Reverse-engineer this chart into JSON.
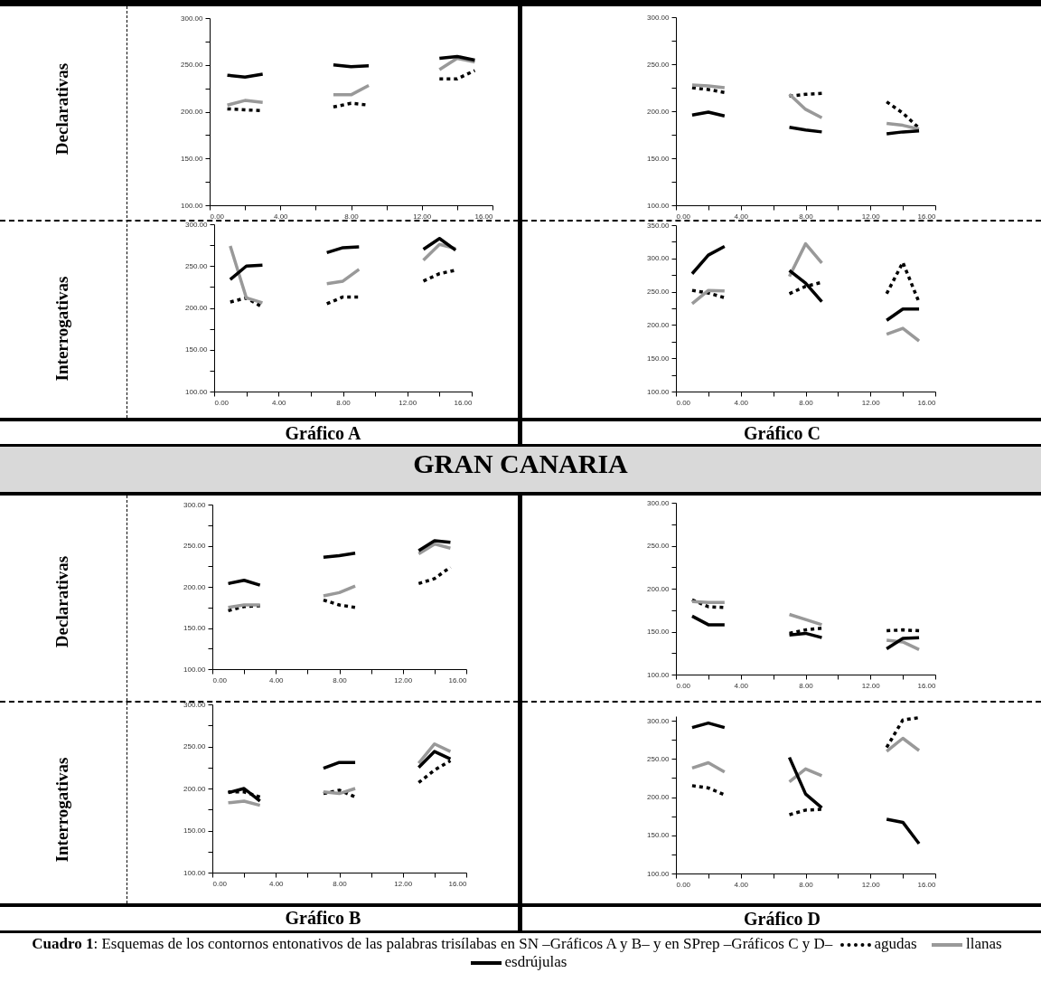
{
  "chart_data": [
    {
      "type": "line",
      "ylabel": "Declarativas",
      "x": [
        1,
        2,
        3,
        5,
        7,
        8,
        9,
        11,
        13,
        14,
        15
      ],
      "xlim": [
        0,
        16
      ],
      "ylim": [
        100,
        300
      ],
      "xticks": [
        {
          "value": 0,
          "label": "0.00"
        },
        {
          "value": 2,
          "label": null
        },
        {
          "value": 4,
          "label": "4.00"
        },
        {
          "value": 6,
          "label": null
        },
        {
          "value": 8,
          "label": "8.00"
        },
        {
          "value": 10,
          "label": null
        },
        {
          "value": 12,
          "label": "12.00"
        },
        {
          "value": 14,
          "label": null
        },
        {
          "value": 16,
          "label": "16.00"
        }
      ],
      "yticks": [
        {
          "value": 100,
          "label": "100.00"
        },
        {
          "value": 125,
          "label": null
        },
        {
          "value": 150,
          "label": "150.00"
        },
        {
          "value": 175,
          "label": null
        },
        {
          "value": 200,
          "label": "200.00"
        },
        {
          "value": 225,
          "label": null
        },
        {
          "value": 250,
          "label": "250.00"
        },
        {
          "value": 275,
          "label": null
        },
        {
          "value": 300,
          "label": "300.00"
        }
      ],
      "series": [
        {
          "color": "#000000",
          "line_style": "dotted",
          "values": [
            203,
            202,
            201,
            null,
            205,
            209,
            207,
            null,
            235,
            235,
            244
          ]
        },
        {
          "color": "#999999",
          "line_style": "solid",
          "values": [
            207,
            212,
            210,
            null,
            218,
            218,
            228,
            null,
            245,
            257,
            253
          ]
        },
        {
          "color": "#000000",
          "line_style": "solid",
          "values": [
            239,
            237,
            240,
            null,
            250,
            248,
            249,
            null,
            257,
            259,
            255
          ]
        }
      ]
    },
    {
      "type": "line",
      "x": [
        1,
        2,
        3,
        5,
        7,
        8,
        9,
        11,
        13,
        14,
        15
      ],
      "xlim": [
        0,
        16
      ],
      "ylim": [
        100,
        300
      ],
      "xticks": [
        {
          "value": 0,
          "label": "0.00"
        },
        {
          "value": 2,
          "label": null
        },
        {
          "value": 4,
          "label": "4.00"
        },
        {
          "value": 6,
          "label": null
        },
        {
          "value": 8,
          "label": "8.00"
        },
        {
          "value": 10,
          "label": null
        },
        {
          "value": 12,
          "label": "12.00"
        },
        {
          "value": 14,
          "label": null
        },
        {
          "value": 16,
          "label": "16.00"
        }
      ],
      "yticks": [
        {
          "value": 100,
          "label": "100.00"
        },
        {
          "value": 125,
          "label": null
        },
        {
          "value": 150,
          "label": "150.00"
        },
        {
          "value": 175,
          "label": null
        },
        {
          "value": 200,
          "label": "200.00"
        },
        {
          "value": 225,
          "label": null
        },
        {
          "value": 250,
          "label": "250.00"
        },
        {
          "value": 275,
          "label": null
        },
        {
          "value": 300,
          "label": "300.00"
        }
      ],
      "series": [
        {
          "color": "#000000",
          "line_style": "dotted",
          "values": [
            225,
            223,
            220,
            null,
            216,
            218,
            219,
            null,
            210,
            198,
            182
          ]
        },
        {
          "color": "#999999",
          "line_style": "solid",
          "values": [
            228,
            227,
            225,
            null,
            218,
            202,
            193,
            null,
            187,
            185,
            181
          ]
        },
        {
          "color": "#000000",
          "line_style": "solid",
          "values": [
            196,
            199,
            195,
            null,
            183,
            180,
            178,
            null,
            176,
            178,
            179
          ]
        }
      ]
    },
    {
      "type": "line",
      "ylabel": "Interrogativas",
      "xlabel": "Gráfico A",
      "x": [
        1,
        2,
        3,
        5,
        7,
        8,
        9,
        11,
        13,
        14,
        15
      ],
      "xlim": [
        0,
        16
      ],
      "ylim": [
        100,
        300
      ],
      "xticks": [
        {
          "value": 0,
          "label": "0.00"
        },
        {
          "value": 2,
          "label": null
        },
        {
          "value": 4,
          "label": "4.00"
        },
        {
          "value": 6,
          "label": null
        },
        {
          "value": 8,
          "label": "8.00"
        },
        {
          "value": 10,
          "label": null
        },
        {
          "value": 12,
          "label": "12.00"
        },
        {
          "value": 14,
          "label": null
        },
        {
          "value": 16,
          "label": "16.00"
        }
      ],
      "yticks": [
        {
          "value": 100,
          "label": "100.00"
        },
        {
          "value": 125,
          "label": null
        },
        {
          "value": 150,
          "label": "150.00"
        },
        {
          "value": 175,
          "label": null
        },
        {
          "value": 200,
          "label": "200.00"
        },
        {
          "value": 225,
          "label": null
        },
        {
          "value": 250,
          "label": "250.00"
        },
        {
          "value": 275,
          "label": null
        },
        {
          "value": 300,
          "label": "300.00"
        }
      ],
      "series": [
        {
          "color": "#000000",
          "line_style": "dotted",
          "values": [
            207,
            212,
            201,
            null,
            205,
            213,
            213,
            null,
            232,
            241,
            245
          ]
        },
        {
          "color": "#999999",
          "line_style": "solid",
          "values": [
            274,
            212,
            206,
            null,
            229,
            232,
            246,
            null,
            257,
            276,
            271
          ]
        },
        {
          "color": "#000000",
          "line_style": "solid",
          "values": [
            234,
            250,
            251,
            null,
            266,
            272,
            273,
            null,
            270,
            283,
            269
          ]
        }
      ]
    },
    {
      "type": "line",
      "xlabel": "Gráfico C",
      "x": [
        1,
        2,
        3,
        5,
        7,
        8,
        9,
        11,
        13,
        14,
        15
      ],
      "xlim": [
        0,
        16
      ],
      "ylim": [
        100,
        350
      ],
      "xticks": [
        {
          "value": 0,
          "label": "0.00"
        },
        {
          "value": 2,
          "label": null
        },
        {
          "value": 4,
          "label": "4.00"
        },
        {
          "value": 6,
          "label": null
        },
        {
          "value": 8,
          "label": "8.00"
        },
        {
          "value": 10,
          "label": null
        },
        {
          "value": 12,
          "label": "12.00"
        },
        {
          "value": 14,
          "label": null
        },
        {
          "value": 16,
          "label": "16.00"
        }
      ],
      "yticks": [
        {
          "value": 100,
          "label": "100.00"
        },
        {
          "value": 125,
          "label": null
        },
        {
          "value": 150,
          "label": "150.00"
        },
        {
          "value": 175,
          "label": null
        },
        {
          "value": 200,
          "label": "200.00"
        },
        {
          "value": 225,
          "label": null
        },
        {
          "value": 250,
          "label": "250.00"
        },
        {
          "value": 275,
          "label": null
        },
        {
          "value": 300,
          "label": "300.00"
        },
        {
          "value": 325,
          "label": null
        },
        {
          "value": 350,
          "label": "350.00"
        }
      ],
      "series": [
        {
          "color": "#000000",
          "line_style": "dotted",
          "values": [
            252,
            248,
            241,
            null,
            247,
            258,
            264,
            null,
            247,
            294,
            234
          ]
        },
        {
          "color": "#999999",
          "line_style": "solid",
          "values": [
            232,
            252,
            251,
            null,
            273,
            322,
            293,
            null,
            186,
            195,
            176
          ]
        },
        {
          "color": "#000000",
          "line_style": "solid",
          "values": [
            277,
            305,
            318,
            null,
            282,
            263,
            235,
            null,
            207,
            224,
            224
          ]
        }
      ]
    },
    {
      "type": "line",
      "ylabel": "Declarativas",
      "annotations": [
        "GRAN CANARIA"
      ],
      "x": [
        1,
        2,
        3,
        5,
        7,
        8,
        9,
        11,
        13,
        14,
        15
      ],
      "xlim": [
        0,
        16
      ],
      "ylim": [
        100,
        300
      ],
      "xticks": [
        {
          "value": 0,
          "label": "0.00"
        },
        {
          "value": 2,
          "label": null
        },
        {
          "value": 4,
          "label": "4.00"
        },
        {
          "value": 6,
          "label": null
        },
        {
          "value": 8,
          "label": "8.00"
        },
        {
          "value": 10,
          "label": null
        },
        {
          "value": 12,
          "label": "12.00"
        },
        {
          "value": 14,
          "label": null
        },
        {
          "value": 16,
          "label": "16.00"
        }
      ],
      "yticks": [
        {
          "value": 100,
          "label": "100.00"
        },
        {
          "value": 125,
          "label": null
        },
        {
          "value": 150,
          "label": "150.00"
        },
        {
          "value": 175,
          "label": null
        },
        {
          "value": 200,
          "label": "200.00"
        },
        {
          "value": 225,
          "label": null
        },
        {
          "value": 250,
          "label": "250.00"
        },
        {
          "value": 275,
          "label": null
        },
        {
          "value": 300,
          "label": "300.00"
        }
      ],
      "series": [
        {
          "color": "#000000",
          "line_style": "dotted",
          "values": [
            171,
            176,
            177,
            null,
            184,
            178,
            175,
            null,
            204,
            210,
            224
          ]
        },
        {
          "color": "#999999",
          "line_style": "solid",
          "values": [
            175,
            178,
            178,
            null,
            189,
            193,
            201,
            null,
            240,
            252,
            247
          ]
        },
        {
          "color": "#000000",
          "line_style": "solid",
          "values": [
            204,
            208,
            202,
            null,
            236,
            238,
            241,
            null,
            244,
            256,
            254
          ]
        }
      ]
    },
    {
      "type": "line",
      "x": [
        1,
        2,
        3,
        5,
        7,
        8,
        9,
        11,
        13,
        14,
        15
      ],
      "xlim": [
        0,
        16
      ],
      "ylim": [
        100,
        300
      ],
      "xticks": [
        {
          "value": 0,
          "label": "0.00"
        },
        {
          "value": 2,
          "label": null
        },
        {
          "value": 4,
          "label": "4.00"
        },
        {
          "value": 6,
          "label": null
        },
        {
          "value": 8,
          "label": "8.00"
        },
        {
          "value": 10,
          "label": null
        },
        {
          "value": 12,
          "label": "12.00"
        },
        {
          "value": 14,
          "label": null
        },
        {
          "value": 16,
          "label": "16.00"
        }
      ],
      "yticks": [
        {
          "value": 100,
          "label": "100.00"
        },
        {
          "value": 125,
          "label": null
        },
        {
          "value": 150,
          "label": "150.00"
        },
        {
          "value": 175,
          "label": null
        },
        {
          "value": 200,
          "label": "200.00"
        },
        {
          "value": 225,
          "label": null
        },
        {
          "value": 250,
          "label": "250.00"
        },
        {
          "value": 275,
          "label": null
        },
        {
          "value": 300,
          "label": "300.00"
        }
      ],
      "series": [
        {
          "color": "#000000",
          "line_style": "dotted",
          "values": [
            187,
            179,
            178,
            null,
            148,
            152,
            154,
            null,
            151,
            152,
            151
          ]
        },
        {
          "color": "#999999",
          "line_style": "solid",
          "values": [
            185,
            184,
            184,
            null,
            170,
            164,
            158,
            null,
            140,
            138,
            129
          ]
        },
        {
          "color": "#000000",
          "line_style": "solid",
          "values": [
            168,
            158,
            158,
            null,
            146,
            148,
            143,
            null,
            130,
            142,
            143
          ]
        }
      ]
    },
    {
      "type": "line",
      "ylabel": "Interrogativas",
      "xlabel": "Gráfico B",
      "x": [
        1,
        2,
        3,
        5,
        7,
        8,
        9,
        11,
        13,
        14,
        15
      ],
      "xlim": [
        0,
        16
      ],
      "ylim": [
        100,
        300
      ],
      "xticks": [
        {
          "value": 0,
          "label": "0.00"
        },
        {
          "value": 2,
          "label": null
        },
        {
          "value": 4,
          "label": "4.00"
        },
        {
          "value": 6,
          "label": null
        },
        {
          "value": 8,
          "label": "8.00"
        },
        {
          "value": 10,
          "label": null
        },
        {
          "value": 12,
          "label": "12.00"
        },
        {
          "value": 14,
          "label": null
        },
        {
          "value": 16,
          "label": "16.00"
        }
      ],
      "yticks": [
        {
          "value": 100,
          "label": "100.00"
        },
        {
          "value": 125,
          "label": null
        },
        {
          "value": 150,
          "label": "150.00"
        },
        {
          "value": 175,
          "label": null
        },
        {
          "value": 200,
          "label": "200.00"
        },
        {
          "value": 225,
          "label": null
        },
        {
          "value": 250,
          "label": "250.00"
        },
        {
          "value": 275,
          "label": null
        },
        {
          "value": 300,
          "label": "300.00"
        }
      ],
      "series": [
        {
          "color": "#000000",
          "line_style": "dotted",
          "values": [
            196,
            196,
            190,
            null,
            194,
            198,
            190,
            null,
            207,
            222,
            233
          ]
        },
        {
          "color": "#999999",
          "line_style": "solid",
          "values": [
            183,
            185,
            180,
            null,
            196,
            194,
            200,
            null,
            230,
            253,
            244
          ]
        },
        {
          "color": "#000000",
          "line_style": "solid",
          "values": [
            195,
            200,
            185,
            null,
            224,
            231,
            231,
            null,
            225,
            244,
            235
          ]
        }
      ]
    },
    {
      "type": "line",
      "xlabel": "Gráfico D",
      "legend": "bottom",
      "annotations": [
        "Cuadro 1: Esquemas de los contornos entonativos de las palabras trisílabas en SN –Gráficos  A y B– y en SPrep –Gráficos C y D–"
      ],
      "x": [
        1,
        2,
        3,
        5,
        7,
        8,
        9,
        11,
        13,
        14,
        15
      ],
      "xlim": [
        0,
        16
      ],
      "ylim": [
        100,
        306
      ],
      "xticks": [
        {
          "value": 0,
          "label": "0.00"
        },
        {
          "value": 2,
          "label": null
        },
        {
          "value": 4,
          "label": "4.00"
        },
        {
          "value": 6,
          "label": null
        },
        {
          "value": 8,
          "label": "8.00"
        },
        {
          "value": 10,
          "label": null
        },
        {
          "value": 12,
          "label": "12.00"
        },
        {
          "value": 14,
          "label": null
        },
        {
          "value": 16,
          "label": "16.00"
        }
      ],
      "yticks": [
        {
          "value": 100,
          "label": "100.00"
        },
        {
          "value": 125,
          "label": null
        },
        {
          "value": 150,
          "label": "150.00"
        },
        {
          "value": 175,
          "label": null
        },
        {
          "value": 200,
          "label": "200.00"
        },
        {
          "value": 225,
          "label": null
        },
        {
          "value": 250,
          "label": "250.00"
        },
        {
          "value": 275,
          "label": null
        },
        {
          "value": 300,
          "label": "300.00"
        }
      ],
      "series": [
        {
          "name": "agudas",
          "color": "#000000",
          "line_style": "dotted",
          "values": [
            215,
            212,
            203,
            null,
            177,
            183,
            184,
            null,
            265,
            301,
            304
          ]
        },
        {
          "name": "llanas",
          "color": "#999999",
          "line_style": "solid",
          "values": [
            238,
            245,
            233,
            null,
            220,
            237,
            228,
            null,
            260,
            277,
            261
          ]
        },
        {
          "name": "esdrújulas",
          "color": "#000000",
          "line_style": "solid",
          "values": [
            291,
            297,
            291,
            null,
            252,
            204,
            186,
            null,
            171,
            167,
            139
          ]
        }
      ]
    }
  ]
}
